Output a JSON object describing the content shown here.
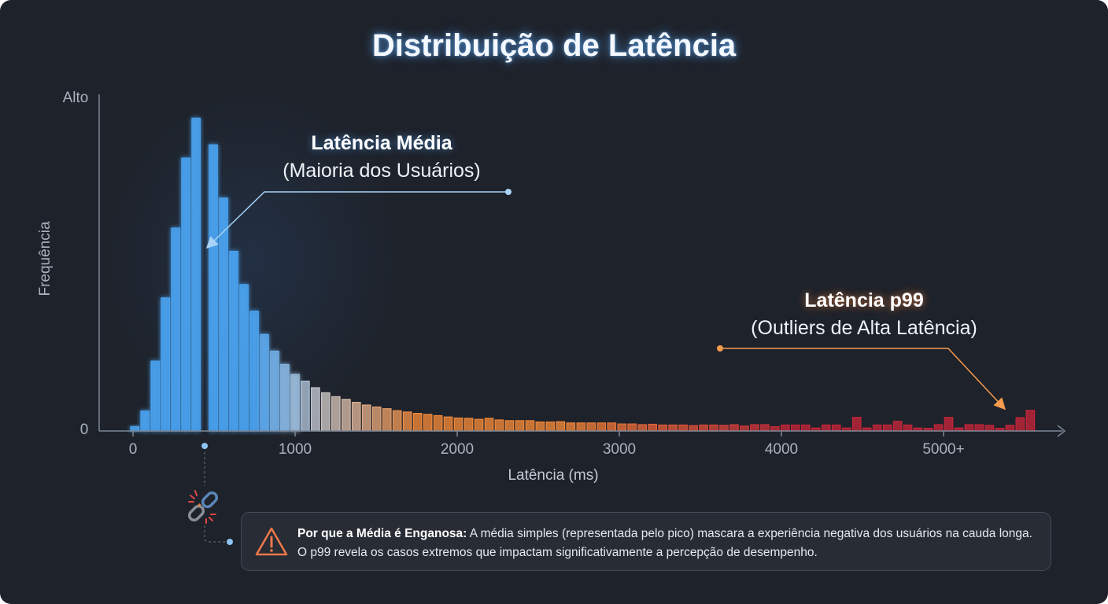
{
  "chart_data": {
    "type": "bar",
    "title": "Distribuição de Latência",
    "xlabel": "Latência (ms)",
    "ylabel": "Frequência",
    "y_tick_labels": [
      "0",
      "Alto"
    ],
    "x_ticks": [
      0,
      1000,
      2000,
      3000,
      4000,
      5000
    ],
    "x_tick_labels": [
      "0",
      "1000",
      "2000",
      "3000",
      "4000",
      "5000+"
    ],
    "xlim": [
      -200,
      5700
    ],
    "ylim": [
      0,
      100
    ],
    "grid": false,
    "bin_width_ms": 63,
    "values": [
      1.3,
      6,
      21,
      40,
      61,
      82,
      94,
      86,
      70,
      54,
      44,
      36,
      29,
      24,
      20,
      17,
      15,
      13,
      11.5,
      10.3,
      9.5,
      8.6,
      7.8,
      7.2,
      6.7,
      6.1,
      5.7,
      5.3,
      5.0,
      4.6,
      4.2,
      3.9,
      3.8,
      3.5,
      3.8,
      3.3,
      3.1,
      3.1,
      3.1,
      2.7,
      2.7,
      2.8,
      2.4,
      2.4,
      2.4,
      2.4,
      2.4,
      2.1,
      2.1,
      1.9,
      2.0,
      1.8,
      1.8,
      1.8,
      1.6,
      1.8,
      1.8,
      1.7,
      1.9,
      1.5,
      1.9,
      1.9,
      1.3,
      1.8,
      1.8,
      1.8,
      0.9,
      1.8,
      1.8,
      0.9,
      4.1,
      0.9,
      1.8,
      1.8,
      2.9,
      1.8,
      0.9,
      0.8,
      1.9,
      4.1,
      0.9,
      1.9,
      1.9,
      1.7,
      0.8,
      1.7,
      4.0,
      6.2
    ],
    "mean_ms": 442,
    "colors": {
      "low": "#4aa3f0",
      "mid": "#c9c9cc",
      "high": "#f0883a",
      "tail": "#c2263a"
    },
    "annotations": [
      {
        "title": "Latência Média",
        "subtitle": "(Maioria dos Usuários)",
        "color": "#8cc4f2"
      },
      {
        "title": "Latência p99",
        "subtitle": "(Outliers de Alta Latência)",
        "color": "#f08a4a"
      }
    ]
  },
  "callout": {
    "icon": "warning-triangle-icon",
    "bold": "Por que a Média é Enganosa:",
    "text": " A média simples (representada pelo pico) mascara a experiência negativa dos usuários na cauda longa. O p99 revela os casos extremos que impactam significativamente a percepção de desempenho."
  },
  "decor_icon": "broken-link-icon"
}
